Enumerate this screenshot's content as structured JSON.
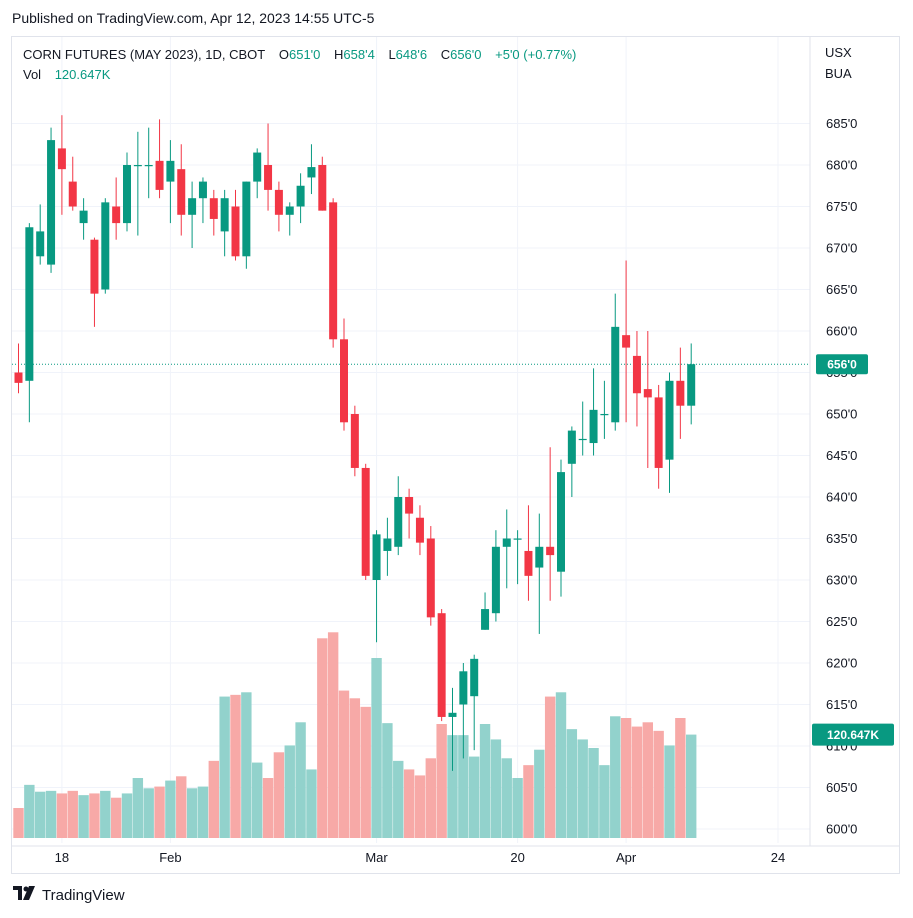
{
  "published": "Published on TradingView.com, Apr 12, 2023 14:55 UTC-5",
  "legend": {
    "symbol": "CORN FUTURES (MAY 2023), 1D, CBOT",
    "open_label": "O",
    "open": "651'0",
    "high_label": "H",
    "high": "658'4",
    "low_label": "L",
    "low": "648'6",
    "close_label": "C",
    "close": "656'0",
    "change": "+5'0 (+0.77%)",
    "vol_label": "Vol",
    "vol": "120.647K"
  },
  "currency": {
    "line1": "USX",
    "line2": "BUA"
  },
  "brand": {
    "name": "TradingView",
    "logo_icon": "tradingview-logo-icon"
  },
  "colors": {
    "up": "#089981",
    "down": "#f23645",
    "vol_up": "#92d2cc",
    "vol_down": "#f7a9a7",
    "grid": "#f0f3fa"
  },
  "chart_data": {
    "type": "candlestick",
    "title": "CORN FUTURES (MAY 2023), 1D, CBOT",
    "ylabel_unit": "USX/BUA",
    "price_ticks": [
      "685'0",
      "680'0",
      "675'0",
      "670'0",
      "665'0",
      "660'0",
      "655'0",
      "650'0",
      "645'0",
      "640'0",
      "635'0",
      "630'0",
      "625'0",
      "620'0",
      "615'0",
      "610'0",
      "605'0",
      "600'0"
    ],
    "price_tick_values": [
      685,
      680,
      675,
      670,
      665,
      660,
      655,
      650,
      645,
      640,
      635,
      630,
      625,
      620,
      615,
      610,
      605,
      600
    ],
    "ylim": [
      598.2,
      694.6
    ],
    "x_ticks": [
      {
        "label": "18",
        "index": 4
      },
      {
        "label": "Feb",
        "index": 14
      },
      {
        "label": "Mar",
        "index": 33
      },
      {
        "label": "20",
        "index": 46
      },
      {
        "label": "Apr",
        "index": 56
      },
      {
        "label": "24",
        "index": 70
      }
    ],
    "last_price_label": "656'0",
    "last_price": 656.0,
    "last_volume_label": "120.647K",
    "volume_max": 245000,
    "candles": [
      {
        "o": 655,
        "h": 658.5,
        "l": 652.5,
        "c": 653.75,
        "v": 35000
      },
      {
        "o": 654,
        "h": 673,
        "l": 649,
        "c": 672.5,
        "v": 62000
      },
      {
        "o": 669,
        "h": 675.25,
        "l": 668,
        "c": 672,
        "v": 54000
      },
      {
        "o": 668,
        "h": 684.5,
        "l": 667,
        "c": 683,
        "v": 55000
      },
      {
        "o": 682,
        "h": 686,
        "l": 674,
        "c": 679.5,
        "v": 52000
      },
      {
        "o": 678,
        "h": 681,
        "l": 674.5,
        "c": 675,
        "v": 55000
      },
      {
        "o": 673,
        "h": 676,
        "l": 671,
        "c": 674.5,
        "v": 50000
      },
      {
        "o": 671,
        "h": 671.25,
        "l": 660.5,
        "c": 664.5,
        "v": 52000
      },
      {
        "o": 665,
        "h": 676,
        "l": 664.5,
        "c": 675.5,
        "v": 55000
      },
      {
        "o": 675,
        "h": 678.5,
        "l": 671,
        "c": 673,
        "v": 47000
      },
      {
        "o": 673,
        "h": 681.5,
        "l": 672,
        "c": 680,
        "v": 52000
      },
      {
        "o": 680,
        "h": 684,
        "l": 671.5,
        "c": 680,
        "v": 70000
      },
      {
        "o": 680,
        "h": 684.5,
        "l": 676,
        "c": 680,
        "v": 58000
      },
      {
        "o": 680.5,
        "h": 685.5,
        "l": 676,
        "c": 677,
        "v": 60000
      },
      {
        "o": 678,
        "h": 683,
        "l": 673,
        "c": 680.5,
        "v": 67000
      },
      {
        "o": 679.5,
        "h": 682.5,
        "l": 671.5,
        "c": 674,
        "v": 72000
      },
      {
        "o": 674,
        "h": 678,
        "l": 670,
        "c": 676,
        "v": 58000
      },
      {
        "o": 676,
        "h": 678.5,
        "l": 673,
        "c": 678,
        "v": 60000
      },
      {
        "o": 676,
        "h": 677,
        "l": 671.5,
        "c": 673.5,
        "v": 90000
      },
      {
        "o": 672,
        "h": 677,
        "l": 669,
        "c": 676,
        "v": 165000
      },
      {
        "o": 675,
        "h": 677,
        "l": 668.5,
        "c": 669,
        "v": 167000
      },
      {
        "o": 669,
        "h": 678,
        "l": 667.5,
        "c": 678,
        "v": 170000
      },
      {
        "o": 678,
        "h": 682,
        "l": 676,
        "c": 681.5,
        "v": 88000
      },
      {
        "o": 680,
        "h": 685,
        "l": 674.5,
        "c": 677,
        "v": 70000
      },
      {
        "o": 677,
        "h": 678,
        "l": 672,
        "c": 674,
        "v": 100000
      },
      {
        "o": 674,
        "h": 675.5,
        "l": 671.5,
        "c": 675,
        "v": 108000
      },
      {
        "o": 675,
        "h": 679,
        "l": 673,
        "c": 677.5,
        "v": 135000
      },
      {
        "o": 678.5,
        "h": 682.5,
        "l": 676.5,
        "c": 679.75,
        "v": 80000
      },
      {
        "o": 680,
        "h": 681,
        "l": 674.5,
        "c": 674.5,
        "v": 233000
      },
      {
        "o": 675.5,
        "h": 676,
        "l": 658,
        "c": 659,
        "v": 240000
      },
      {
        "o": 659,
        "h": 661.5,
        "l": 648,
        "c": 649,
        "v": 172000
      },
      {
        "o": 650,
        "h": 651,
        "l": 642.5,
        "c": 643.5,
        "v": 163000
      },
      {
        "o": 643.5,
        "h": 644,
        "l": 630,
        "c": 630.5,
        "v": 153000
      },
      {
        "o": 630,
        "h": 636,
        "l": 622.5,
        "c": 635.5,
        "v": 210000
      },
      {
        "o": 633.5,
        "h": 637.5,
        "l": 630.5,
        "c": 635,
        "v": 134000
      },
      {
        "o": 634,
        "h": 642.5,
        "l": 633,
        "c": 640,
        "v": 90000
      },
      {
        "o": 640,
        "h": 641,
        "l": 635,
        "c": 638,
        "v": 80000
      },
      {
        "o": 637.5,
        "h": 639,
        "l": 633,
        "c": 634.5,
        "v": 73000
      },
      {
        "o": 635,
        "h": 636.5,
        "l": 624.5,
        "c": 625.5,
        "v": 93000
      },
      {
        "o": 626,
        "h": 626.5,
        "l": 613,
        "c": 613.5,
        "v": 133000
      },
      {
        "o": 613.5,
        "h": 617,
        "l": 607,
        "c": 614,
        "v": 120000
      },
      {
        "o": 615,
        "h": 620,
        "l": 608.5,
        "c": 619,
        "v": 120000
      },
      {
        "o": 616,
        "h": 621,
        "l": 609.5,
        "c": 620.5,
        "v": 95000
      },
      {
        "o": 624,
        "h": 628.5,
        "l": 624,
        "c": 626.5,
        "v": 133000
      },
      {
        "o": 626,
        "h": 636,
        "l": 625,
        "c": 634,
        "v": 115000
      },
      {
        "o": 634,
        "h": 638.5,
        "l": 629,
        "c": 635,
        "v": 93000
      },
      {
        "o": 635,
        "h": 636,
        "l": 629.5,
        "c": 635,
        "v": 70000
      },
      {
        "o": 633.5,
        "h": 639,
        "l": 627.5,
        "c": 630.5,
        "v": 85000
      },
      {
        "o": 631.5,
        "h": 638,
        "l": 623.5,
        "c": 634,
        "v": 103000
      },
      {
        "o": 634,
        "h": 646,
        "l": 627.5,
        "c": 633,
        "v": 165000
      },
      {
        "o": 631,
        "h": 644.5,
        "l": 628,
        "c": 643,
        "v": 170000
      },
      {
        "o": 644,
        "h": 648.5,
        "l": 640,
        "c": 648,
        "v": 127000
      },
      {
        "o": 647,
        "h": 651.5,
        "l": 645,
        "c": 647,
        "v": 115000
      },
      {
        "o": 646.5,
        "h": 655.5,
        "l": 645,
        "c": 650.5,
        "v": 105000
      },
      {
        "o": 650,
        "h": 654,
        "l": 647,
        "c": 650,
        "v": 85000
      },
      {
        "o": 649,
        "h": 664.5,
        "l": 648,
        "c": 660.5,
        "v": 142000
      },
      {
        "o": 659.5,
        "h": 668.5,
        "l": 649,
        "c": 658,
        "v": 140000
      },
      {
        "o": 657,
        "h": 660,
        "l": 648.5,
        "c": 652.5,
        "v": 130000
      },
      {
        "o": 653,
        "h": 660,
        "l": 643.5,
        "c": 652,
        "v": 135000
      },
      {
        "o": 652,
        "h": 653.5,
        "l": 641,
        "c": 643.5,
        "v": 125000
      },
      {
        "o": 644.5,
        "h": 655,
        "l": 640.5,
        "c": 654,
        "v": 108000
      },
      {
        "o": 654,
        "h": 658,
        "l": 647,
        "c": 651,
        "v": 140000
      },
      {
        "o": 651,
        "h": 658.5,
        "l": 648.75,
        "c": 656,
        "v": 120647
      }
    ]
  }
}
